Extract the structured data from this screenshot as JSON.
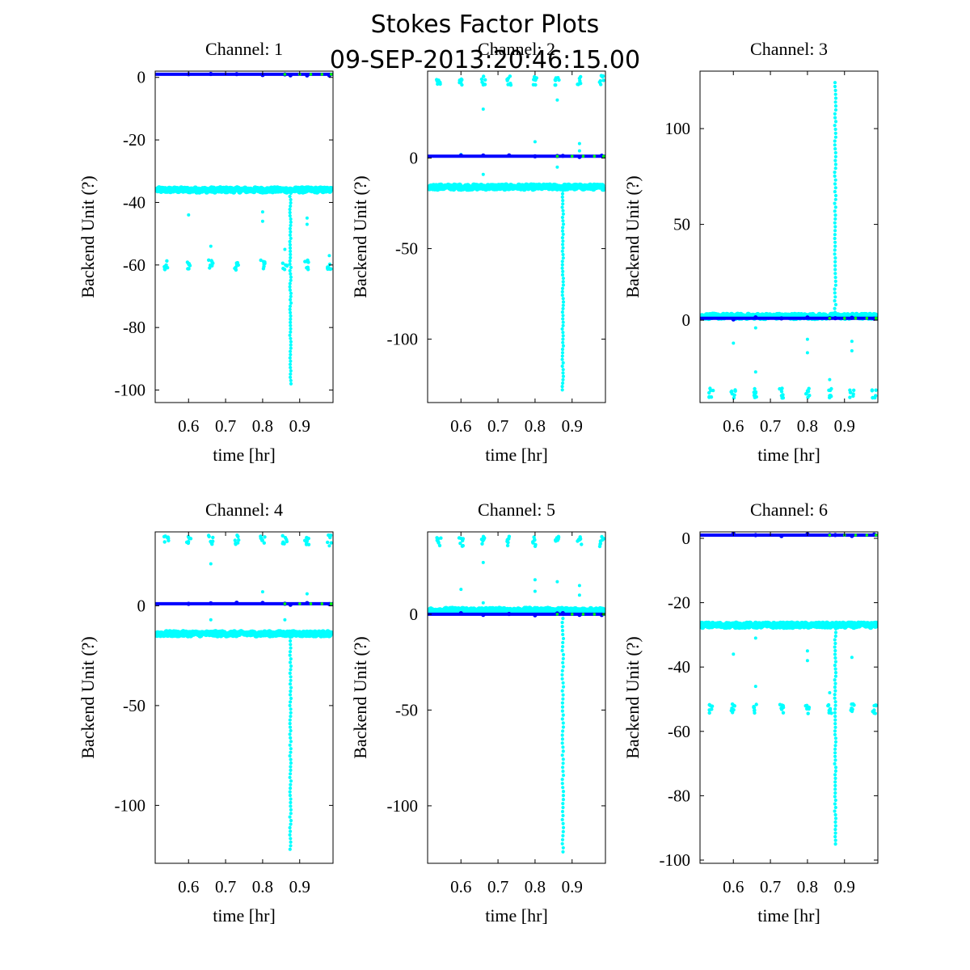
{
  "figure": {
    "title_line1": "Stokes Factor Plots",
    "title_line2": "09-SEP-2013:20:46:15.00"
  },
  "colors": {
    "cyan_series": "#00ffff",
    "blue_series": "#0000ff",
    "green_series": "#00ff00",
    "axes": "#000000"
  },
  "chart_data": [
    {
      "type": "scatter",
      "title": "Channel: 1",
      "xlabel": "time [hr]",
      "ylabel": "Backend Unit (?)",
      "xlim": [
        0.51,
        0.99
      ],
      "ylim": [
        -104,
        2
      ],
      "xticks": [
        0.6,
        0.7,
        0.8,
        0.9
      ],
      "xtick_labels": [
        "0.6",
        "0.7",
        "0.8",
        "0.9"
      ],
      "yticks": [
        0,
        -20,
        -40,
        -60,
        -80,
        -100
      ],
      "ytick_labels": [
        "0",
        "-20",
        "-40",
        "-60",
        "-80",
        "-100"
      ],
      "blue_level": 1,
      "cyan_band": -36,
      "cyan_clusters": -60,
      "spike_end": -98,
      "outliers": [
        [
          0.6,
          -44
        ],
        [
          0.66,
          -54
        ],
        [
          0.8,
          -43
        ],
        [
          0.8,
          -46
        ],
        [
          0.86,
          -55
        ],
        [
          0.92,
          -45
        ],
        [
          0.92,
          -47
        ],
        [
          0.98,
          -57
        ]
      ]
    },
    {
      "type": "scatter",
      "title": "Channel: 2",
      "xlabel": "time [hr]",
      "ylabel": "Backend Unit (?)",
      "xlim": [
        0.51,
        0.99
      ],
      "ylim": [
        -135,
        48
      ],
      "xticks": [
        0.6,
        0.7,
        0.8,
        0.9
      ],
      "xtick_labels": [
        "0.6",
        "0.7",
        "0.8",
        "0.9"
      ],
      "yticks": [
        0,
        -50,
        -100
      ],
      "ytick_labels": [
        "0",
        "-50",
        "-100"
      ],
      "blue_level": 1,
      "cyan_band": -16,
      "cyan_clusters": 43,
      "spike_end": -128,
      "outliers": [
        [
          0.6,
          2
        ],
        [
          0.66,
          27
        ],
        [
          0.66,
          -9
        ],
        [
          0.8,
          9
        ],
        [
          0.86,
          32
        ],
        [
          0.86,
          -5
        ],
        [
          0.92,
          8
        ],
        [
          0.92,
          4
        ]
      ]
    },
    {
      "type": "scatter",
      "title": "Channel: 3",
      "xlabel": "time [hr]",
      "ylabel": "Backend Unit (?)",
      "xlim": [
        0.51,
        0.99
      ],
      "ylim": [
        -43,
        130
      ],
      "xticks": [
        0.6,
        0.7,
        0.8,
        0.9
      ],
      "xtick_labels": [
        "0.6",
        "0.7",
        "0.8",
        "0.9"
      ],
      "yticks": [
        100,
        50,
        0
      ],
      "ytick_labels": [
        "100",
        "50",
        "0"
      ],
      "blue_level": 1,
      "cyan_band": 2,
      "cyan_clusters": -38,
      "spike_end": 124,
      "outliers": [
        [
          0.6,
          -12
        ],
        [
          0.66,
          -27
        ],
        [
          0.66,
          -4
        ],
        [
          0.8,
          -10
        ],
        [
          0.8,
          -17
        ],
        [
          0.86,
          -31
        ],
        [
          0.92,
          -11
        ],
        [
          0.92,
          -16
        ]
      ]
    },
    {
      "type": "scatter",
      "title": "Channel: 4",
      "xlabel": "time [hr]",
      "ylabel": "Backend Unit (?)",
      "xlim": [
        0.51,
        0.99
      ],
      "ylim": [
        -129,
        37
      ],
      "xticks": [
        0.6,
        0.7,
        0.8,
        0.9
      ],
      "xtick_labels": [
        "0.6",
        "0.7",
        "0.8",
        "0.9"
      ],
      "yticks": [
        0,
        -50,
        -100
      ],
      "ytick_labels": [
        "0",
        "-50",
        "-100"
      ],
      "blue_level": 1,
      "cyan_band": -14,
      "cyan_clusters": 33,
      "spike_end": -122,
      "outliers": [
        [
          0.66,
          21
        ],
        [
          0.66,
          -7
        ],
        [
          0.8,
          7
        ],
        [
          0.86,
          -7
        ],
        [
          0.92,
          6
        ],
        [
          0.98,
          30
        ]
      ]
    },
    {
      "type": "scatter",
      "title": "Channel: 5",
      "xlabel": "time [hr]",
      "ylabel": "Backend Unit (?)",
      "xlim": [
        0.51,
        0.99
      ],
      "ylim": [
        -130,
        43
      ],
      "xticks": [
        0.6,
        0.7,
        0.8,
        0.9
      ],
      "xtick_labels": [
        "0.6",
        "0.7",
        "0.8",
        "0.9"
      ],
      "yticks": [
        0,
        -50,
        -100
      ],
      "ytick_labels": [
        "0",
        "-50",
        "-100"
      ],
      "blue_level": 0,
      "cyan_band": 2,
      "cyan_clusters": 38,
      "spike_end": -124,
      "outliers": [
        [
          0.6,
          13
        ],
        [
          0.66,
          27
        ],
        [
          0.66,
          6
        ],
        [
          0.8,
          18
        ],
        [
          0.8,
          12
        ],
        [
          0.86,
          17
        ],
        [
          0.92,
          15
        ],
        [
          0.92,
          10
        ]
      ]
    },
    {
      "type": "scatter",
      "title": "Channel: 6",
      "xlabel": "time [hr]",
      "ylabel": "Backend Unit (?)",
      "xlim": [
        0.51,
        0.99
      ],
      "ylim": [
        -101,
        2
      ],
      "xticks": [
        0.6,
        0.7,
        0.8,
        0.9
      ],
      "xtick_labels": [
        "0.6",
        "0.7",
        "0.8",
        "0.9"
      ],
      "yticks": [
        0,
        -20,
        -40,
        -60,
        -80,
        -100
      ],
      "ytick_labels": [
        "0",
        "-20",
        "-40",
        "-60",
        "-80",
        "-100"
      ],
      "blue_level": 1,
      "cyan_band": -27,
      "cyan_clusters": -53,
      "spike_end": -95,
      "outliers": [
        [
          0.6,
          -36
        ],
        [
          0.66,
          -31
        ],
        [
          0.66,
          -46
        ],
        [
          0.8,
          -35
        ],
        [
          0.8,
          -38
        ],
        [
          0.86,
          -48
        ],
        [
          0.92,
          -37
        ],
        [
          0.98,
          -52
        ]
      ]
    }
  ]
}
